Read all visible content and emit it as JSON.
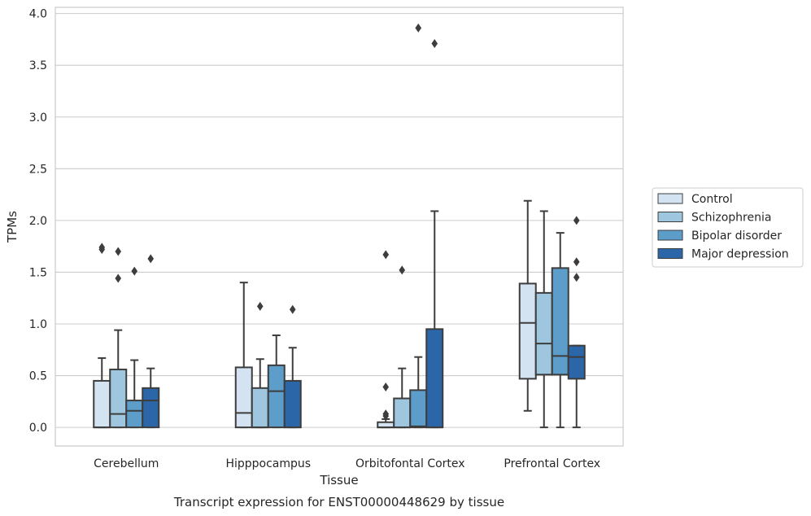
{
  "chart_data": {
    "type": "box",
    "xlabel": "Tissue",
    "ylabel": "TPMs",
    "caption": "Transcript expression for ENST00000448629 by tissue",
    "ylim": [
      -0.18,
      4.06
    ],
    "yticks": [
      "0.0",
      "0.5",
      "1.0",
      "1.5",
      "2.0",
      "2.5",
      "3.0",
      "3.5",
      "4.0"
    ],
    "grid": "horizontal",
    "legend_position": "right",
    "categories": [
      "Cerebellum",
      "Hipppocampus",
      "Orbitofontal Cortex",
      "Prefrontal Cortex"
    ],
    "series": [
      {
        "name": "Control",
        "color": "#d3e3f2",
        "boxes": [
          {
            "whislo": 0.0,
            "q1": 0.0,
            "med": 0.0,
            "q3": 0.45,
            "whishi": 0.67,
            "fliers": [
              1.72,
              1.74
            ]
          },
          {
            "whislo": 0.0,
            "q1": 0.0,
            "med": 0.14,
            "q3": 0.58,
            "whishi": 1.4,
            "fliers": []
          },
          {
            "whislo": 0.0,
            "q1": 0.0,
            "med": 0.0,
            "q3": 0.05,
            "whishi": 0.08,
            "fliers": [
              0.11,
              0.13,
              0.39,
              1.67
            ]
          },
          {
            "whislo": 0.16,
            "q1": 0.47,
            "med": 1.01,
            "q3": 1.39,
            "whishi": 2.19,
            "fliers": []
          }
        ]
      },
      {
        "name": "Schizophrenia",
        "color": "#9ec7df",
        "boxes": [
          {
            "whislo": 0.0,
            "q1": 0.0,
            "med": 0.13,
            "q3": 0.56,
            "whishi": 0.94,
            "fliers": [
              1.44,
              1.7
            ]
          },
          {
            "whislo": 0.0,
            "q1": 0.0,
            "med": 0.0,
            "q3": 0.38,
            "whishi": 0.66,
            "fliers": [
              1.17
            ]
          },
          {
            "whislo": 0.0,
            "q1": 0.0,
            "med": 0.0,
            "q3": 0.28,
            "whishi": 0.57,
            "fliers": [
              1.52
            ]
          },
          {
            "whislo": 0.0,
            "q1": 0.51,
            "med": 0.81,
            "q3": 1.3,
            "whishi": 2.09,
            "fliers": []
          }
        ]
      },
      {
        "name": "Bipolar disorder",
        "color": "#5c9dca",
        "boxes": [
          {
            "whislo": 0.0,
            "q1": 0.0,
            "med": 0.16,
            "q3": 0.26,
            "whishi": 0.65,
            "fliers": [
              1.51
            ]
          },
          {
            "whislo": 0.0,
            "q1": 0.0,
            "med": 0.35,
            "q3": 0.6,
            "whishi": 0.89,
            "fliers": []
          },
          {
            "whislo": 0.0,
            "q1": 0.0,
            "med": 0.01,
            "q3": 0.36,
            "whishi": 0.68,
            "fliers": [
              3.86
            ]
          },
          {
            "whislo": 0.0,
            "q1": 0.51,
            "med": 0.69,
            "q3": 1.54,
            "whishi": 1.88,
            "fliers": []
          }
        ]
      },
      {
        "name": "Major depression",
        "color": "#2b67a8",
        "boxes": [
          {
            "whislo": 0.0,
            "q1": 0.0,
            "med": 0.26,
            "q3": 0.38,
            "whishi": 0.57,
            "fliers": [
              1.63
            ]
          },
          {
            "whislo": 0.0,
            "q1": 0.0,
            "med": 0.0,
            "q3": 0.45,
            "whishi": 0.77,
            "fliers": [
              1.14
            ]
          },
          {
            "whislo": 0.0,
            "q1": 0.0,
            "med": 0.0,
            "q3": 0.95,
            "whishi": 2.09,
            "fliers": [
              3.71
            ]
          },
          {
            "whislo": 0.0,
            "q1": 0.47,
            "med": 0.68,
            "q3": 0.79,
            "whishi": 0.79,
            "fliers": [
              1.45,
              1.6,
              2.0
            ]
          }
        ]
      }
    ]
  }
}
